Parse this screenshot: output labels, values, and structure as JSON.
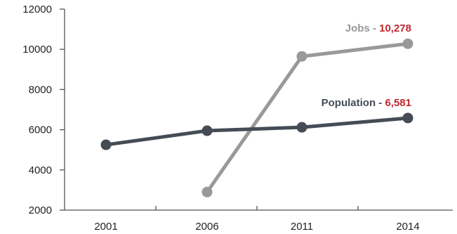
{
  "chart_data": {
    "type": "line",
    "x": [
      2001,
      2006,
      2011,
      2014
    ],
    "xticks": [
      "2001",
      "2006",
      "2011",
      "2014"
    ],
    "ylim": [
      2000,
      12000
    ],
    "yticks": [
      2000,
      4000,
      6000,
      8000,
      10000,
      12000
    ],
    "grid": false,
    "series": [
      {
        "name": "Jobs",
        "label_value": "10,278",
        "color": "#999999",
        "points": [
          [
            2006,
            2900
          ],
          [
            2011,
            9650
          ],
          [
            2014,
            10278
          ]
        ]
      },
      {
        "name": "Population",
        "label_value": "6,581",
        "color": "#454c55",
        "points": [
          [
            2001,
            5250
          ],
          [
            2006,
            5950
          ],
          [
            2011,
            6120
          ],
          [
            2014,
            6581
          ]
        ]
      }
    ],
    "label_separator": " - ",
    "value_color": "#c0282e"
  }
}
